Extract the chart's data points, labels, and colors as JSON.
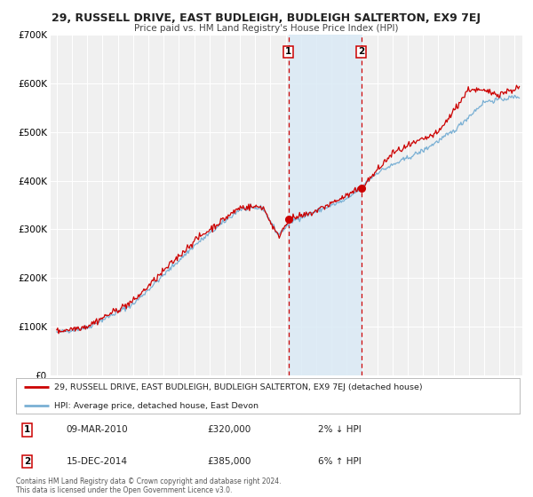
{
  "title": "29, RUSSELL DRIVE, EAST BUDLEIGH, BUDLEIGH SALTERTON, EX9 7EJ",
  "subtitle": "Price paid vs. HM Land Registry's House Price Index (HPI)",
  "legend_line1": "29, RUSSELL DRIVE, EAST BUDLEIGH, BUDLEIGH SALTERTON, EX9 7EJ (detached house)",
  "legend_line2": "HPI: Average price, detached house, East Devon",
  "transaction1_date": "09-MAR-2010",
  "transaction1_price": "£320,000",
  "transaction1_hpi": "2% ↓ HPI",
  "transaction2_date": "15-DEC-2014",
  "transaction2_price": "£385,000",
  "transaction2_hpi": "6% ↑ HPI",
  "footnote1": "Contains HM Land Registry data © Crown copyright and database right 2024.",
  "footnote2": "This data is licensed under the Open Government Licence v3.0.",
  "background_color": "#ffffff",
  "plot_bg_color": "#f0f0f0",
  "grid_color": "#ffffff",
  "red_line_color": "#cc0000",
  "blue_line_color": "#7ab0d4",
  "marker_color": "#cc0000",
  "vline_color": "#cc0000",
  "vband_color": "#daeaf5",
  "ylim": [
    0,
    700000
  ],
  "yticks": [
    0,
    100000,
    200000,
    300000,
    400000,
    500000,
    600000,
    700000
  ],
  "ytick_labels": [
    "£0",
    "£100K",
    "£200K",
    "£300K",
    "£400K",
    "£500K",
    "£600K",
    "£700K"
  ],
  "xlim_start": 1994.6,
  "xlim_end": 2025.5,
  "transaction1_x": 2010.18,
  "transaction2_x": 2014.96,
  "transaction1_y": 320000,
  "transaction2_y": 385000,
  "title_fontsize": 9.0,
  "subtitle_fontsize": 7.5,
  "ylabel_fontsize": 7.5,
  "xlabel_fontsize": 6.5,
  "legend_fontsize": 6.8,
  "detail_fontsize": 7.5,
  "footnote_fontsize": 5.5
}
